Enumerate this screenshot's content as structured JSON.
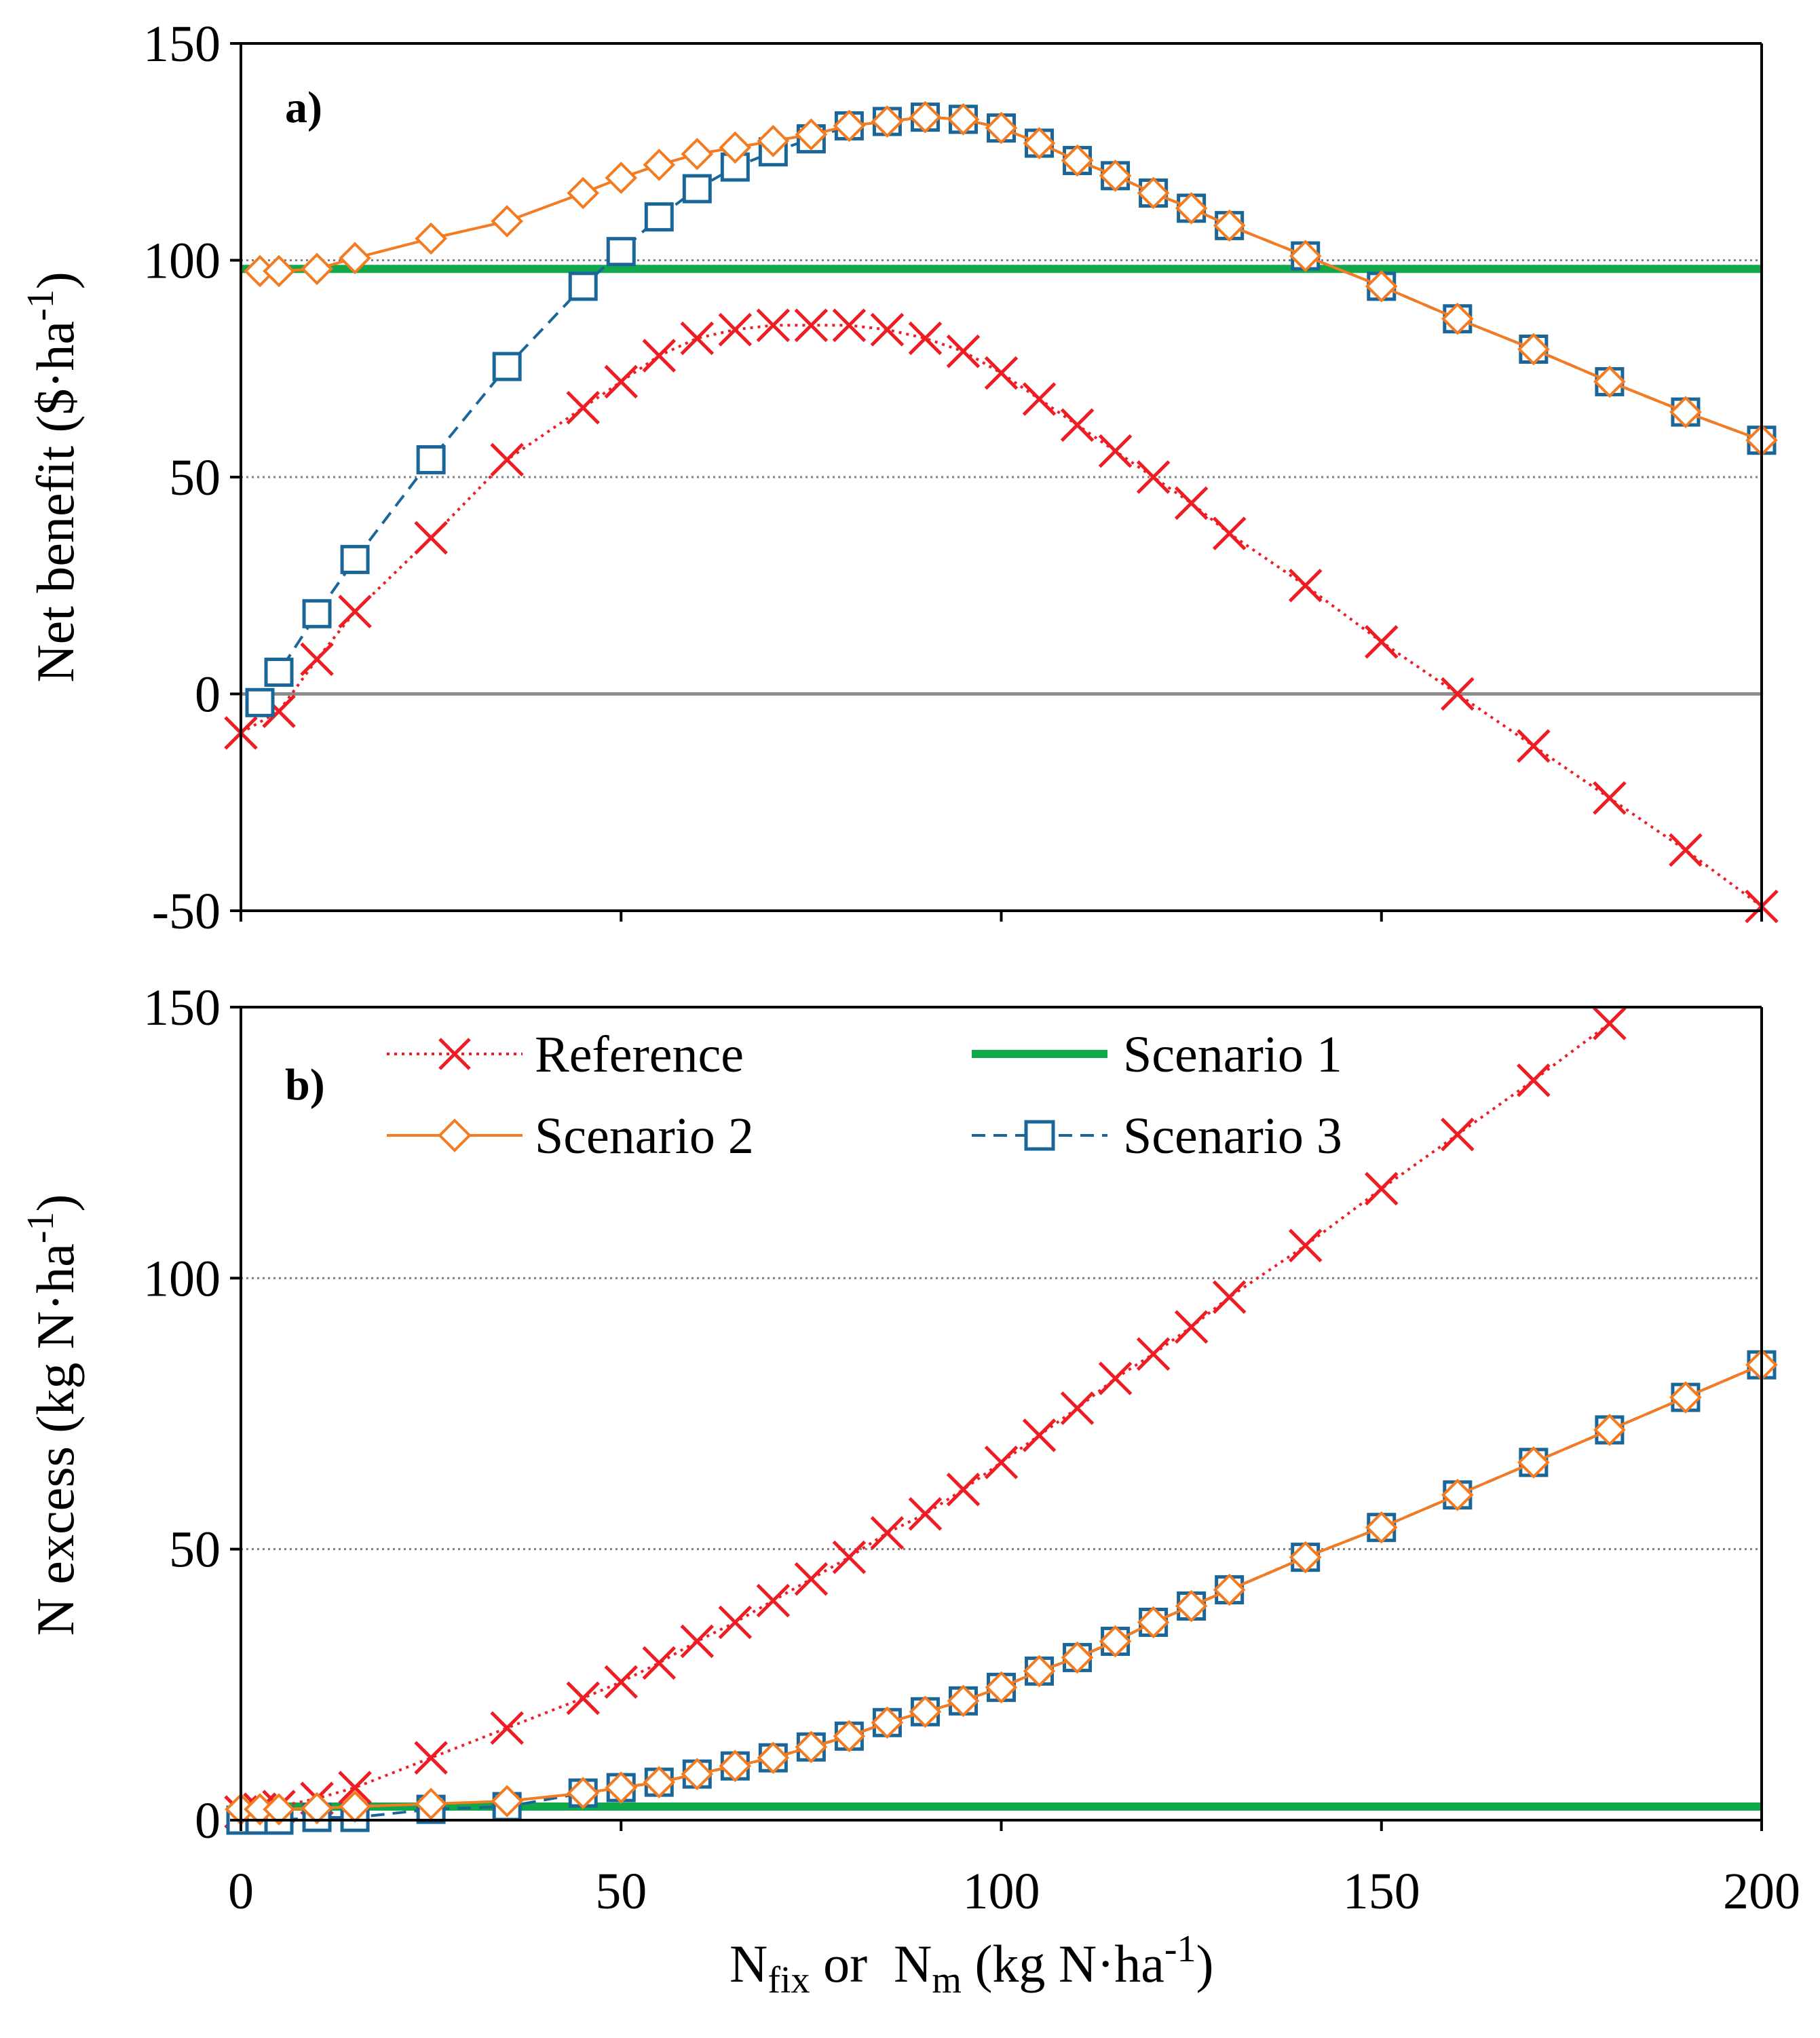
{
  "colors": {
    "reference": "#ee1c23",
    "scenario1": "#10a84a",
    "scenario2": "#f47b20",
    "scenario3": "#1b6699",
    "grid": "#808080"
  },
  "x_title": {
    "pre": "N",
    "sub1": "fix",
    "mid": " or  N",
    "sub2": "m",
    "post": " (kg N·ha",
    "sup": "-1",
    "close": ")"
  },
  "legend": {
    "reference": "Reference",
    "scenario1": "Scenario 1",
    "scenario2": "Scenario 2",
    "scenario3": "Scenario 3"
  },
  "chart_data": [
    {
      "type": "line",
      "panel_label": "a)",
      "ylabel": {
        "main": "Net benefit  ($·ha",
        "sup": "-1",
        "close": ")"
      },
      "xlim": [
        0,
        200
      ],
      "ylim": [
        -50,
        150
      ],
      "xticks": [
        0,
        50,
        100,
        150,
        200
      ],
      "yticks": [
        -50,
        0,
        50,
        100,
        150
      ],
      "gridlines": [
        50,
        100
      ],
      "zero_line": 0,
      "series": [
        {
          "name": "Reference",
          "key": "reference",
          "marker": "x",
          "x": [
            0,
            5,
            10,
            15,
            25,
            35,
            45,
            50,
            55,
            60,
            65,
            70,
            75,
            80,
            85,
            90,
            95,
            100,
            105,
            110,
            115,
            120,
            125,
            130,
            140,
            150,
            160,
            170,
            180,
            190,
            200
          ],
          "y": [
            -9,
            -4,
            8,
            19,
            36,
            54,
            66,
            72,
            78,
            82,
            84,
            85,
            85,
            85,
            84,
            82,
            79,
            74,
            68,
            62,
            56,
            50,
            44,
            37,
            25,
            12,
            0,
            -12,
            -24,
            -36,
            -49
          ]
        },
        {
          "name": "Scenario 1",
          "key": "scenario1",
          "marker": "none",
          "x": [
            0,
            200
          ],
          "y": [
            98,
            98
          ]
        },
        {
          "name": "Scenario 2",
          "key": "scenario2",
          "marker": "diamond",
          "x": [
            2.5,
            5,
            10,
            15,
            25,
            35,
            45,
            50,
            55,
            60,
            65,
            70,
            75,
            80,
            85,
            90,
            95,
            100,
            105,
            110,
            115,
            120,
            125,
            130,
            140,
            150,
            160,
            170,
            180,
            190,
            200
          ],
          "y": [
            97.5,
            97.5,
            98,
            100.5,
            105,
            109,
            115.5,
            119,
            122,
            124.5,
            126,
            127.5,
            129,
            131,
            132,
            133,
            132.5,
            130.5,
            127,
            123,
            119.5,
            115.5,
            112,
            108,
            101,
            94,
            86.5,
            79.5,
            72,
            65,
            58.5
          ]
        },
        {
          "name": "Scenario 3",
          "key": "scenario3",
          "marker": "square",
          "x": [
            2.5,
            5,
            10,
            15,
            25,
            35,
            45,
            50,
            55,
            60,
            65,
            70,
            75,
            80,
            85,
            90,
            95,
            100,
            105,
            110,
            115,
            120,
            125,
            130,
            140,
            150,
            160,
            170,
            180,
            190,
            200
          ],
          "y": [
            -2,
            5,
            18.5,
            31,
            54,
            75.5,
            94,
            102,
            110,
            116.5,
            121.5,
            125,
            128,
            131,
            132,
            133,
            132.5,
            130.5,
            127,
            123,
            119.5,
            115.5,
            112,
            108,
            101,
            94,
            86.5,
            79.5,
            72,
            65,
            58.5
          ]
        }
      ]
    },
    {
      "type": "line",
      "panel_label": "b)",
      "ylabel": {
        "main": "N excess  (kg N·ha",
        "sup": "-1",
        "close": ")"
      },
      "xlim": [
        0,
        200
      ],
      "ylim": [
        0,
        150
      ],
      "xticks": [
        0,
        50,
        100,
        150,
        200
      ],
      "yticks": [
        0,
        50,
        100,
        150
      ],
      "gridlines": [
        50,
        100
      ],
      "series": [
        {
          "name": "Reference",
          "key": "reference",
          "marker": "x",
          "x": [
            0,
            2.5,
            5,
            10,
            15,
            25,
            35,
            45,
            50,
            55,
            60,
            65,
            70,
            75,
            80,
            85,
            90,
            95,
            100,
            105,
            110,
            115,
            120,
            125,
            130,
            140,
            150,
            160,
            170,
            180
          ],
          "y": [
            1.5,
            2,
            2.5,
            4,
            6,
            11.5,
            17,
            22.5,
            25.5,
            29,
            33,
            36.5,
            40.5,
            44.5,
            48.5,
            53,
            56.5,
            61,
            66,
            71,
            76,
            81.5,
            86,
            91,
            96.5,
            106,
            116.5,
            126.5,
            136.5,
            147
          ]
        },
        {
          "name": "Scenario 1",
          "key": "scenario1",
          "marker": "none",
          "x": [
            0,
            200
          ],
          "y": [
            2.5,
            2.5
          ]
        },
        {
          "name": "Scenario 2",
          "key": "scenario2",
          "marker": "diamond",
          "x": [
            0,
            2.5,
            5,
            10,
            15,
            25,
            35,
            45,
            50,
            55,
            60,
            65,
            70,
            75,
            80,
            85,
            90,
            95,
            100,
            105,
            110,
            115,
            120,
            125,
            130,
            140,
            150,
            160,
            170,
            180,
            190,
            200
          ],
          "y": [
            2,
            2,
            2,
            2.2,
            2.5,
            3,
            3.5,
            5,
            6,
            7,
            8.5,
            10,
            11.5,
            13.5,
            15.5,
            18,
            20,
            22,
            24.5,
            27.5,
            30,
            33,
            36.5,
            39.5,
            42.5,
            48.5,
            54,
            60,
            66,
            72,
            78,
            84
          ]
        },
        {
          "name": "Scenario 3",
          "key": "scenario3",
          "marker": "square",
          "x": [
            0,
            2.5,
            5,
            10,
            15,
            25,
            35,
            45,
            50,
            55,
            60,
            65,
            70,
            75,
            80,
            85,
            90,
            95,
            100,
            105,
            110,
            115,
            120,
            125,
            130,
            140,
            150,
            160,
            170,
            180,
            190,
            200
          ],
          "y": [
            0,
            0,
            0,
            0.5,
            0.5,
            2,
            2.5,
            5,
            6,
            7,
            8.5,
            10,
            11.5,
            13.5,
            15.5,
            18,
            20,
            22,
            24.5,
            27.5,
            30,
            33,
            36.5,
            39.5,
            42.5,
            48.5,
            54,
            60,
            66,
            72,
            78,
            84
          ]
        }
      ]
    }
  ]
}
